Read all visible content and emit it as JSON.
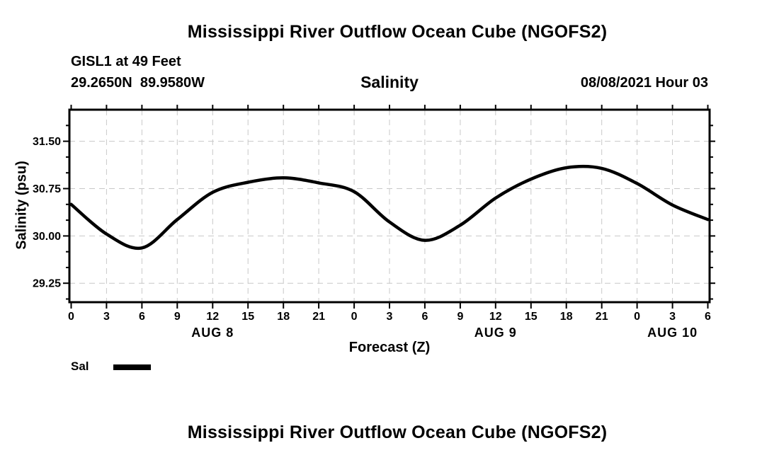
{
  "page": {
    "top_title": "Mississippi River Outflow Ocean Cube (NGOFS2)",
    "bottom_title": "Mississippi River Outflow Ocean Cube (NGOFS2)"
  },
  "header": {
    "station": "GISL1 at 49 Feet",
    "coordinates": "29.2650N  89.9580W",
    "datetime": "08/08/2021 Hour 03"
  },
  "chart_data": {
    "type": "line",
    "title": "Salinity",
    "xlabel": "Forecast (Z)",
    "ylabel": "Salinity (psu)",
    "xlim": [
      0,
      54
    ],
    "ylim": [
      28.95,
      32.0
    ],
    "grid": "dashed-major",
    "grid_color": "#c8c8c8",
    "line_color": "#000000",
    "x_hours": [
      0,
      3,
      6,
      9,
      12,
      15,
      18,
      21,
      24,
      27,
      30,
      33,
      36,
      39,
      42,
      45,
      48,
      51,
      54
    ],
    "series": [
      {
        "name": "Sal",
        "color": "#000000",
        "values": [
          30.5,
          30.03,
          29.81,
          30.26,
          30.69,
          30.85,
          30.92,
          30.84,
          30.7,
          30.22,
          29.93,
          30.17,
          30.6,
          30.9,
          31.08,
          31.07,
          30.83,
          30.49,
          30.26
        ]
      }
    ],
    "x_tick_hours": [
      0,
      3,
      6,
      9,
      12,
      15,
      18,
      21,
      24,
      27,
      30,
      33,
      36,
      39,
      42,
      45,
      48,
      51,
      54
    ],
    "x_tick_labels": [
      "0",
      "3",
      "6",
      "9",
      "12",
      "15",
      "18",
      "21",
      "0",
      "3",
      "6",
      "9",
      "12",
      "15",
      "18",
      "21",
      "0",
      "3",
      "6"
    ],
    "x_day_labels": [
      {
        "label": "AUG 8",
        "hour": 12
      },
      {
        "label": "AUG 9",
        "hour": 36
      },
      {
        "label": "AUG 10",
        "hour": 51
      }
    ],
    "y_major_ticks": [
      29.25,
      30.0,
      30.75,
      31.5
    ],
    "y_tick_labels": [
      "29.25",
      "30.00",
      "30.75",
      "31.50"
    ],
    "y_minor_ticks": [
      29.0,
      29.5,
      29.75,
      30.25,
      30.5,
      31.0,
      31.25,
      31.75
    ],
    "legend": {
      "label": "Sal",
      "swatch_color": "#000000",
      "position": "bottom-left"
    }
  }
}
